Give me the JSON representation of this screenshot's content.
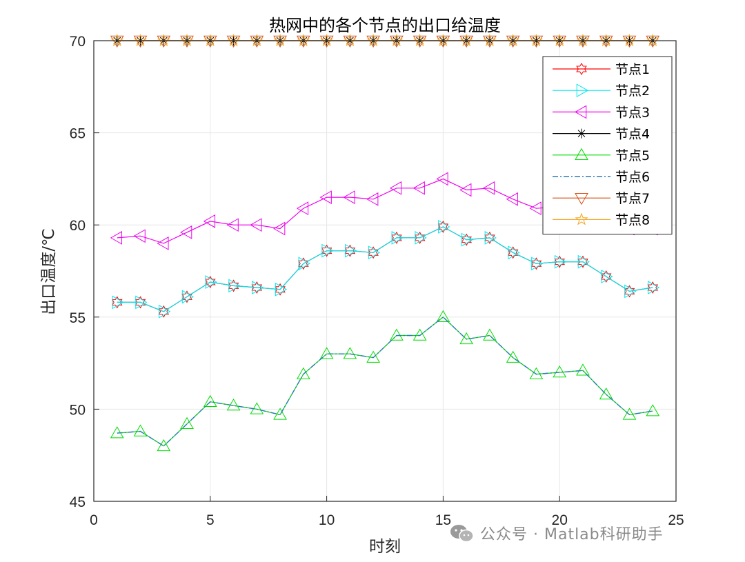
{
  "chart_data": {
    "type": "line",
    "title": "热网中的各个节点的出口给温度",
    "xlabel": "时刻",
    "ylabel": "出口温度/℃",
    "xlim": [
      0,
      25
    ],
    "ylim": [
      45,
      70
    ],
    "xticks": [
      0,
      5,
      10,
      15,
      20,
      25
    ],
    "yticks": [
      45,
      50,
      55,
      60,
      65,
      70
    ],
    "grid": true,
    "legend_position": "top-right",
    "x": [
      1,
      2,
      3,
      4,
      5,
      6,
      7,
      8,
      9,
      10,
      11,
      12,
      13,
      14,
      15,
      16,
      17,
      18,
      19,
      20,
      21,
      22,
      23,
      24
    ],
    "series": [
      {
        "name": "节点1",
        "color": "#ff0000",
        "marker": "hexagram",
        "line": "solid",
        "values": [
          55.8,
          55.8,
          55.3,
          56.1,
          56.9,
          56.7,
          56.6,
          56.5,
          57.9,
          58.6,
          58.6,
          58.5,
          59.3,
          59.3,
          59.9,
          59.2,
          59.3,
          58.5,
          57.9,
          58.0,
          58.0,
          57.2,
          56.4,
          56.6
        ]
      },
      {
        "name": "节点2",
        "color": "#00e5ee",
        "marker": "triangle-right",
        "line": "solid",
        "values": [
          55.8,
          55.8,
          55.3,
          56.1,
          56.9,
          56.7,
          56.6,
          56.5,
          57.9,
          58.6,
          58.6,
          58.5,
          59.3,
          59.3,
          59.9,
          59.2,
          59.3,
          58.5,
          57.9,
          58.0,
          58.0,
          57.2,
          56.4,
          56.6
        ]
      },
      {
        "name": "节点3",
        "color": "#ee00ee",
        "marker": "triangle-left",
        "line": "solid",
        "values": [
          59.3,
          59.4,
          59.0,
          59.6,
          60.2,
          60.0,
          60.0,
          59.8,
          60.9,
          61.5,
          61.5,
          61.4,
          62.0,
          62.0,
          62.5,
          61.9,
          62.0,
          61.4,
          60.9,
          61.0,
          61.0,
          60.5,
          59.8,
          59.8
        ]
      },
      {
        "name": "节点4",
        "color": "#000000",
        "marker": "asterisk",
        "line": "solid",
        "values": [
          70,
          70,
          70,
          70,
          70,
          70,
          70,
          70,
          70,
          70,
          70,
          70,
          70,
          70,
          70,
          70,
          70,
          70,
          70,
          70,
          70,
          70,
          70,
          70
        ]
      },
      {
        "name": "节点5",
        "color": "#00dd00",
        "marker": "triangle-up",
        "line": "solid",
        "values": [
          48.7,
          48.8,
          48.0,
          49.2,
          50.4,
          50.2,
          50.0,
          49.7,
          51.9,
          53.0,
          53.0,
          52.8,
          54.0,
          54.0,
          55.0,
          53.8,
          54.0,
          52.8,
          51.9,
          52.0,
          52.1,
          50.8,
          49.7,
          49.9
        ]
      },
      {
        "name": "节点6",
        "color": "#2a7ab8",
        "marker": "none",
        "line": "dashdot",
        "values": [
          48.7,
          48.8,
          48.0,
          49.2,
          50.4,
          50.2,
          50.0,
          49.7,
          51.9,
          53.0,
          53.0,
          52.8,
          54.0,
          54.0,
          55.0,
          53.8,
          54.0,
          52.8,
          51.9,
          52.0,
          52.1,
          50.8,
          49.7,
          49.9
        ]
      },
      {
        "name": "节点7",
        "color": "#d95319",
        "marker": "triangle-down",
        "line": "solid",
        "values": [
          70,
          70,
          70,
          70,
          70,
          70,
          70,
          70,
          70,
          70,
          70,
          70,
          70,
          70,
          70,
          70,
          70,
          70,
          70,
          70,
          70,
          70,
          70,
          70
        ]
      },
      {
        "name": "节点8",
        "color": "#f5a623",
        "marker": "pentagram",
        "line": "solid",
        "values": [
          70,
          70,
          70,
          70,
          70,
          70,
          70,
          70,
          70,
          70,
          70,
          70,
          70,
          70,
          70,
          70,
          70,
          70,
          70,
          70,
          70,
          70,
          70,
          70
        ]
      }
    ]
  },
  "watermark": {
    "text": "公众号 · Matlab科研助手",
    "icon": "wechat-icon"
  }
}
